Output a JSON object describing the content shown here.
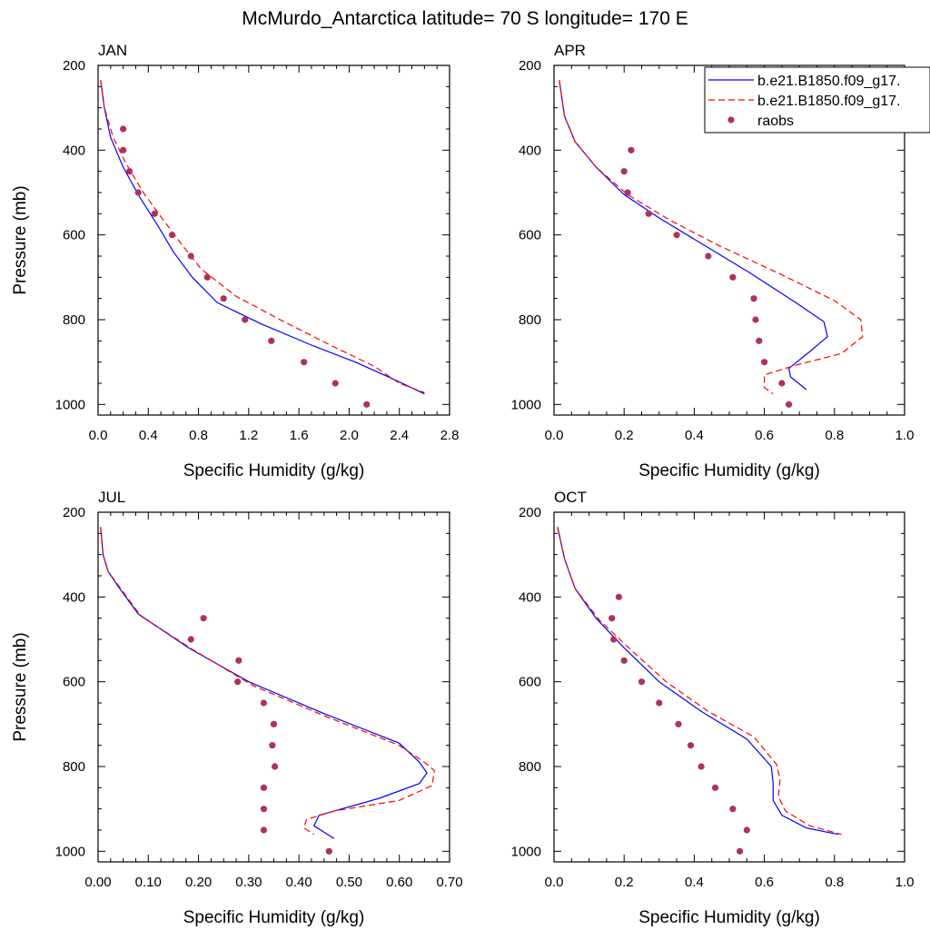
{
  "title": "McMurdo_Antarctica  latitude= 70 S longitude= 170 E",
  "colors": {
    "model1": "#0000ff",
    "model2": "#ff0000",
    "raobs": "#b03060"
  },
  "legend": {
    "position": "top-right of APR panel",
    "entries": [
      {
        "label": "b.e21.B1850.f09_g17.",
        "style": "solid"
      },
      {
        "label": "b.e21.B1850.f09_g17.",
        "style": "dashed"
      },
      {
        "label": "raobs",
        "style": "dot"
      }
    ]
  },
  "chart_data": [
    {
      "panel": "JAN",
      "type": "line",
      "title": "JAN",
      "xlabel": "Specific Humidity (g/kg)",
      "ylabel": "Pressure (mb)",
      "xlim": [
        0,
        2.8
      ],
      "ylim": [
        200,
        1025
      ],
      "xticks": [
        "0.0",
        "0.4",
        "0.8",
        "1.2",
        "1.6",
        "2.0",
        "2.4",
        "2.8"
      ],
      "xtick_values": [
        0,
        0.4,
        0.8,
        1.2,
        1.6,
        2.0,
        2.4,
        2.8
      ],
      "yticks": [
        "200",
        "400",
        "600",
        "800",
        "1000"
      ],
      "ytick_values": [
        200,
        400,
        600,
        800,
        1000
      ],
      "series": [
        {
          "style": "solid",
          "points": [
            [
              0.02,
              235
            ],
            [
              0.05,
              300
            ],
            [
              0.1,
              370
            ],
            [
              0.2,
              440
            ],
            [
              0.33,
              510
            ],
            [
              0.48,
              580
            ],
            [
              0.6,
              640
            ],
            [
              0.75,
              700
            ],
            [
              0.95,
              760
            ],
            [
              1.3,
              810
            ],
            [
              1.7,
              860
            ],
            [
              2.05,
              900
            ],
            [
              2.35,
              940
            ],
            [
              2.6,
              975
            ]
          ]
        },
        {
          "style": "dashed",
          "points": [
            [
              0.02,
              235
            ],
            [
              0.05,
              300
            ],
            [
              0.12,
              370
            ],
            [
              0.22,
              430
            ],
            [
              0.36,
              500
            ],
            [
              0.52,
              565
            ],
            [
              0.66,
              620
            ],
            [
              0.82,
              680
            ],
            [
              1.1,
              745
            ],
            [
              1.45,
              800
            ],
            [
              1.85,
              860
            ],
            [
              2.2,
              910
            ],
            [
              2.4,
              950
            ],
            [
              2.6,
              972
            ]
          ]
        },
        {
          "style": "dots",
          "points": [
            [
              0.2,
              350
            ],
            [
              0.2,
              400
            ],
            [
              0.25,
              450
            ],
            [
              0.32,
              500
            ],
            [
              0.45,
              550
            ],
            [
              0.59,
              600
            ],
            [
              0.74,
              650
            ],
            [
              0.87,
              700
            ],
            [
              1.0,
              750
            ],
            [
              1.17,
              800
            ],
            [
              1.38,
              850
            ],
            [
              1.64,
              900
            ],
            [
              1.89,
              950
            ],
            [
              2.14,
              1000
            ]
          ]
        }
      ]
    },
    {
      "panel": "APR",
      "type": "line",
      "title": "APR",
      "xlabel": "Specific Humidity (g/kg)",
      "ylabel": "",
      "xlim": [
        0,
        1.0
      ],
      "ylim": [
        200,
        1025
      ],
      "xticks": [
        "0.0",
        "0.2",
        "0.4",
        "0.6",
        "0.8",
        "1.0"
      ],
      "xtick_values": [
        0,
        0.2,
        0.4,
        0.6,
        0.8,
        1.0
      ],
      "yticks": [
        "200",
        "400",
        "600",
        "800",
        "1000"
      ],
      "ytick_values": [
        200,
        400,
        600,
        800,
        1000
      ],
      "series": [
        {
          "style": "solid",
          "points": [
            [
              0.015,
              235
            ],
            [
              0.03,
              320
            ],
            [
              0.06,
              380
            ],
            [
              0.12,
              440
            ],
            [
              0.2,
              505
            ],
            [
              0.3,
              560
            ],
            [
              0.42,
              620
            ],
            [
              0.56,
              690
            ],
            [
              0.69,
              760
            ],
            [
              0.77,
              805
            ],
            [
              0.78,
              840
            ],
            [
              0.73,
              875
            ],
            [
              0.67,
              915
            ],
            [
              0.675,
              935
            ],
            [
              0.72,
              965
            ]
          ]
        },
        {
          "style": "dashed",
          "points": [
            [
              0.015,
              235
            ],
            [
              0.03,
              320
            ],
            [
              0.06,
              380
            ],
            [
              0.12,
              440
            ],
            [
              0.21,
              505
            ],
            [
              0.33,
              565
            ],
            [
              0.47,
              625
            ],
            [
              0.64,
              690
            ],
            [
              0.8,
              755
            ],
            [
              0.875,
              800
            ],
            [
              0.88,
              840
            ],
            [
              0.82,
              880
            ],
            [
              0.7,
              905
            ],
            [
              0.6,
              930
            ],
            [
              0.6,
              960
            ],
            [
              0.625,
              975
            ]
          ]
        },
        {
          "style": "dots",
          "points": [
            [
              0.22,
              400
            ],
            [
              0.2,
              450
            ],
            [
              0.21,
              500
            ],
            [
              0.27,
              550
            ],
            [
              0.35,
              600
            ],
            [
              0.44,
              650
            ],
            [
              0.51,
              700
            ],
            [
              0.57,
              750
            ],
            [
              0.575,
              800
            ],
            [
              0.585,
              850
            ],
            [
              0.6,
              900
            ],
            [
              0.65,
              950
            ],
            [
              0.67,
              1000
            ]
          ]
        }
      ]
    },
    {
      "panel": "JUL",
      "type": "line",
      "title": "JUL",
      "xlabel": "Specific Humidity (g/kg)",
      "ylabel": "Pressure (mb)",
      "xlim": [
        0,
        0.7
      ],
      "ylim": [
        200,
        1025
      ],
      "xticks": [
        "0.00",
        "0.10",
        "0.20",
        "0.30",
        "0.40",
        "0.50",
        "0.60",
        "0.70"
      ],
      "xtick_values": [
        0,
        0.1,
        0.2,
        0.3,
        0.4,
        0.5,
        0.6,
        0.7
      ],
      "yticks": [
        "200",
        "400",
        "600",
        "800",
        "1000"
      ],
      "ytick_values": [
        200,
        400,
        600,
        800,
        1000
      ],
      "series": [
        {
          "style": "solid",
          "points": [
            [
              0.005,
              235
            ],
            [
              0.01,
              300
            ],
            [
              0.02,
              340
            ],
            [
              0.04,
              375
            ],
            [
              0.08,
              440
            ],
            [
              0.18,
              520
            ],
            [
              0.3,
              600
            ],
            [
              0.45,
              675
            ],
            [
              0.6,
              745
            ],
            [
              0.64,
              790
            ],
            [
              0.655,
              815
            ],
            [
              0.64,
              840
            ],
            [
              0.56,
              875
            ],
            [
              0.44,
              915
            ],
            [
              0.43,
              940
            ],
            [
              0.47,
              970
            ]
          ]
        },
        {
          "style": "dashed",
          "points": [
            [
              0.005,
              235
            ],
            [
              0.01,
              300
            ],
            [
              0.02,
              340
            ],
            [
              0.045,
              380
            ],
            [
              0.085,
              445
            ],
            [
              0.19,
              525
            ],
            [
              0.31,
              610
            ],
            [
              0.46,
              685
            ],
            [
              0.6,
              750
            ],
            [
              0.65,
              790
            ],
            [
              0.67,
              810
            ],
            [
              0.665,
              845
            ],
            [
              0.6,
              880
            ],
            [
              0.47,
              905
            ],
            [
              0.415,
              925
            ],
            [
              0.41,
              945
            ],
            [
              0.43,
              960
            ]
          ]
        },
        {
          "style": "dots",
          "points": [
            [
              0.21,
              450
            ],
            [
              0.185,
              500
            ],
            [
              0.28,
              550
            ],
            [
              0.278,
              600
            ],
            [
              0.33,
              650
            ],
            [
              0.35,
              700
            ],
            [
              0.347,
              750
            ],
            [
              0.352,
              800
            ],
            [
              0.33,
              850
            ],
            [
              0.33,
              900
            ],
            [
              0.33,
              950
            ],
            [
              0.46,
              1000
            ]
          ]
        }
      ]
    },
    {
      "panel": "OCT",
      "type": "line",
      "title": "OCT",
      "xlabel": "Specific Humidity (g/kg)",
      "ylabel": "",
      "xlim": [
        0,
        1.0
      ],
      "ylim": [
        200,
        1025
      ],
      "xticks": [
        "0.0",
        "0.2",
        "0.4",
        "0.6",
        "0.8",
        "1.0"
      ],
      "xtick_values": [
        0,
        0.2,
        0.4,
        0.6,
        0.8,
        1.0
      ],
      "yticks": [
        "200",
        "400",
        "600",
        "800",
        "1000"
      ],
      "ytick_values": [
        200,
        400,
        600,
        800,
        1000
      ],
      "series": [
        {
          "style": "solid",
          "points": [
            [
              0.01,
              235
            ],
            [
              0.03,
              310
            ],
            [
              0.06,
              380
            ],
            [
              0.12,
              450
            ],
            [
              0.2,
              520
            ],
            [
              0.3,
              600
            ],
            [
              0.42,
              670
            ],
            [
              0.55,
              735
            ],
            [
              0.62,
              800
            ],
            [
              0.625,
              840
            ],
            [
              0.625,
              880
            ],
            [
              0.65,
              915
            ],
            [
              0.72,
              945
            ],
            [
              0.81,
              960
            ]
          ]
        },
        {
          "style": "dashed",
          "points": [
            [
              0.01,
              235
            ],
            [
              0.03,
              310
            ],
            [
              0.06,
              380
            ],
            [
              0.13,
              455
            ],
            [
              0.22,
              525
            ],
            [
              0.32,
              600
            ],
            [
              0.44,
              670
            ],
            [
              0.57,
              730
            ],
            [
              0.635,
              795
            ],
            [
              0.645,
              830
            ],
            [
              0.64,
              870
            ],
            [
              0.66,
              905
            ],
            [
              0.73,
              940
            ],
            [
              0.82,
              960
            ]
          ]
        },
        {
          "style": "dots",
          "points": [
            [
              0.185,
              400
            ],
            [
              0.165,
              450
            ],
            [
              0.17,
              500
            ],
            [
              0.2,
              550
            ],
            [
              0.25,
              600
            ],
            [
              0.3,
              650
            ],
            [
              0.355,
              700
            ],
            [
              0.39,
              750
            ],
            [
              0.42,
              800
            ],
            [
              0.46,
              850
            ],
            [
              0.51,
              900
            ],
            [
              0.55,
              950
            ],
            [
              0.53,
              1000
            ]
          ]
        }
      ]
    }
  ]
}
